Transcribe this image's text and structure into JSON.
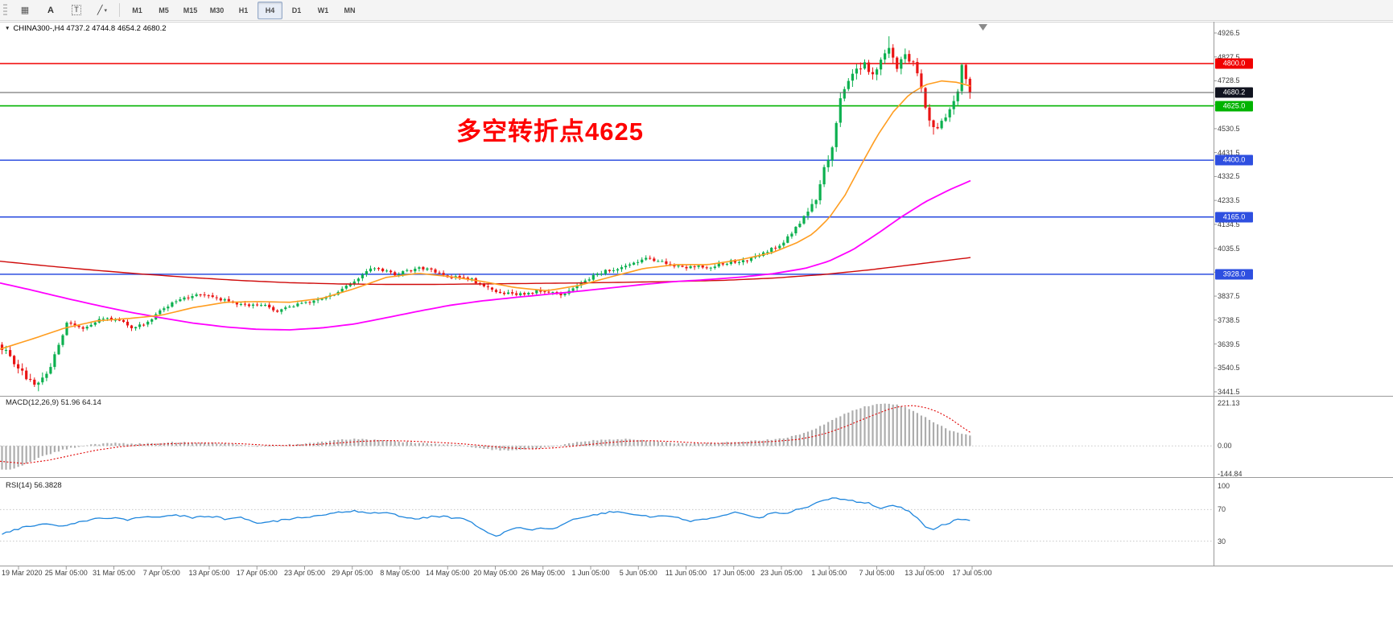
{
  "toolbar": {
    "tool_buttons": [
      {
        "name": "charts-grid-button",
        "glyph": "▦",
        "dropdown": false
      },
      {
        "name": "text-annotation-button",
        "glyph": "A",
        "dropdown": false
      },
      {
        "name": "text-box-tool-button",
        "glyph": "T",
        "dropdown": false
      },
      {
        "name": "line-tools-button",
        "glyph": "╱",
        "dropdown": true
      }
    ],
    "timeframes": [
      "M1",
      "M5",
      "M15",
      "M30",
      "H1",
      "H4",
      "D1",
      "W1",
      "MN"
    ],
    "active_timeframe": "H4"
  },
  "chart": {
    "title": "CHINA300-,H4  4737.2 4744.8 4654.2 4680.2",
    "annotation": "多空转折点4625",
    "annotation_color": "#fe0000",
    "macd_label": "MACD(12,26,9) 51.96 64.14",
    "rsi_label": "RSI(14) 56.3828"
  },
  "axes": {
    "price_labels": [
      "4926.5",
      "4827.5",
      "4728.5",
      "4629.5",
      "4530.5",
      "4431.5",
      "4332.5",
      "4233.5",
      "4134.5",
      "4035.5",
      "3936.5",
      "3837.5",
      "3738.5",
      "3639.5",
      "3540.5",
      "3441.5"
    ],
    "macd_labels": [
      "221.13",
      "0.00",
      "-144.84"
    ],
    "rsi_labels": [
      "100",
      "70",
      "30"
    ],
    "time_labels": [
      "19 Mar 2020",
      "25 Mar 05:00",
      "31 Mar 05:00",
      "7 Apr 05:00",
      "13 Apr 05:00",
      "17 Apr 05:00",
      "23 Apr 05:00",
      "29 Apr 05:00",
      "8 May 05:00",
      "14 May 05:00",
      "20 May 05:00",
      "26 May 05:00",
      "1 Jun 05:00",
      "5 Jun 05:00",
      "11 Jun 05:00",
      "17 Jun 05:00",
      "23 Jun 05:00",
      "1 Jul 05:00",
      "7 Jul 05:00",
      "13 Jul 05:00",
      "17 Jul 05:00"
    ]
  },
  "levels": [
    {
      "price": 4800.0,
      "label": "4800.0",
      "color": "#f00000",
      "type": "resistance"
    },
    {
      "price": 4680.2,
      "label": "4680.2",
      "color": "#10131f",
      "line_color": "#5a5a5a",
      "type": "current-price"
    },
    {
      "price": 4625.0,
      "label": "4625.0",
      "color": "#00b300",
      "type": "pivot"
    },
    {
      "price": 4400.0,
      "label": "4400.0",
      "color": "#2e4fe0",
      "type": "support"
    },
    {
      "price": 4165.0,
      "label": "4165.0",
      "color": "#2e4fe0",
      "type": "support"
    },
    {
      "price": 3928.0,
      "label": "3928.0",
      "color": "#2e4fe0",
      "type": "support"
    }
  ],
  "chart_data": {
    "type": "candlestick",
    "symbol": "CHINA300-",
    "timeframe": "H4",
    "ohlc_current": {
      "open": 4737.2,
      "high": 4744.8,
      "low": 4654.2,
      "close": 4680.2
    },
    "price_range": [
      3441.5,
      4926.5
    ],
    "n_candles": 240,
    "candle_up_color": "#0cb04f",
    "candle_down_color": "#ea1515",
    "close_path_anchors": [
      [
        0,
        3625
      ],
      [
        3,
        3560
      ],
      [
        6,
        3500
      ],
      [
        9,
        3468
      ],
      [
        12,
        3555
      ],
      [
        16,
        3722
      ],
      [
        20,
        3705
      ],
      [
        24,
        3738
      ],
      [
        28,
        3745
      ],
      [
        32,
        3706
      ],
      [
        36,
        3728
      ],
      [
        40,
        3792
      ],
      [
        44,
        3822
      ],
      [
        48,
        3845
      ],
      [
        52,
        3835
      ],
      [
        56,
        3815
      ],
      [
        60,
        3800
      ],
      [
        64,
        3806
      ],
      [
        68,
        3775
      ],
      [
        72,
        3800
      ],
      [
        76,
        3816
      ],
      [
        80,
        3832
      ],
      [
        84,
        3862
      ],
      [
        88,
        3915
      ],
      [
        91,
        3952
      ],
      [
        94,
        3944
      ],
      [
        97,
        3926
      ],
      [
        100,
        3940
      ],
      [
        104,
        3954
      ],
      [
        108,
        3930
      ],
      [
        111,
        3910
      ],
      [
        114,
        3921
      ],
      [
        117,
        3896
      ],
      [
        120,
        3871
      ],
      [
        123,
        3846
      ],
      [
        126,
        3852
      ],
      [
        129,
        3840
      ],
      [
        132,
        3861
      ],
      [
        135,
        3854
      ],
      [
        138,
        3846
      ],
      [
        141,
        3872
      ],
      [
        144,
        3902
      ],
      [
        147,
        3932
      ],
      [
        150,
        3945
      ],
      [
        153,
        3958
      ],
      [
        156,
        3974
      ],
      [
        159,
        3996
      ],
      [
        162,
        3984
      ],
      [
        165,
        3968
      ],
      [
        168,
        3955
      ],
      [
        171,
        3964
      ],
      [
        174,
        3950
      ],
      [
        177,
        3970
      ],
      [
        180,
        3980
      ],
      [
        183,
        3986
      ],
      [
        186,
        4000
      ],
      [
        189,
        4022
      ],
      [
        193,
        4060
      ],
      [
        196,
        4118
      ],
      [
        199,
        4188
      ],
      [
        201,
        4240
      ],
      [
        203,
        4360
      ],
      [
        205,
        4460
      ],
      [
        207,
        4648
      ],
      [
        209,
        4728
      ],
      [
        211,
        4768
      ],
      [
        213,
        4798
      ],
      [
        215,
        4760
      ],
      [
        217,
        4808
      ],
      [
        219,
        4852
      ],
      [
        221,
        4790
      ],
      [
        223,
        4828
      ],
      [
        225,
        4800
      ],
      [
        227,
        4700
      ],
      [
        229,
        4562
      ],
      [
        231,
        4522
      ],
      [
        233,
        4590
      ],
      [
        235,
        4640
      ],
      [
        236,
        4678
      ],
      [
        237,
        4790
      ],
      [
        238,
        4735
      ],
      [
        239,
        4680
      ]
    ],
    "ma_fast_orange": [
      [
        0,
        3618
      ],
      [
        40,
        3660
      ],
      [
        80,
        3705
      ],
      [
        120,
        3735
      ],
      [
        160,
        3745
      ],
      [
        200,
        3758
      ],
      [
        240,
        3790
      ],
      [
        280,
        3812
      ],
      [
        320,
        3815
      ],
      [
        360,
        3812
      ],
      [
        400,
        3828
      ],
      [
        440,
        3868
      ],
      [
        480,
        3915
      ],
      [
        520,
        3932
      ],
      [
        560,
        3918
      ],
      [
        600,
        3898
      ],
      [
        640,
        3873
      ],
      [
        680,
        3860
      ],
      [
        720,
        3882
      ],
      [
        760,
        3918
      ],
      [
        800,
        3952
      ],
      [
        840,
        3968
      ],
      [
        880,
        3968
      ],
      [
        920,
        3988
      ],
      [
        960,
        4018
      ],
      [
        990,
        4058
      ],
      [
        1010,
        4095
      ],
      [
        1030,
        4160
      ],
      [
        1050,
        4255
      ],
      [
        1070,
        4380
      ],
      [
        1090,
        4500
      ],
      [
        1110,
        4600
      ],
      [
        1130,
        4672
      ],
      [
        1150,
        4712
      ],
      [
        1170,
        4728
      ],
      [
        1190,
        4722
      ],
      [
        1208,
        4705
      ]
    ],
    "ma_mid_magenta": [
      [
        0,
        3892
      ],
      [
        40,
        3862
      ],
      [
        80,
        3830
      ],
      [
        120,
        3800
      ],
      [
        160,
        3772
      ],
      [
        200,
        3748
      ],
      [
        240,
        3726
      ],
      [
        280,
        3710
      ],
      [
        320,
        3700
      ],
      [
        360,
        3698
      ],
      [
        400,
        3706
      ],
      [
        440,
        3722
      ],
      [
        480,
        3748
      ],
      [
        520,
        3775
      ],
      [
        560,
        3800
      ],
      [
        600,
        3818
      ],
      [
        640,
        3832
      ],
      [
        680,
        3845
      ],
      [
        720,
        3858
      ],
      [
        760,
        3872
      ],
      [
        800,
        3886
      ],
      [
        840,
        3898
      ],
      [
        880,
        3906
      ],
      [
        920,
        3916
      ],
      [
        960,
        3930
      ],
      [
        1000,
        3952
      ],
      [
        1030,
        3982
      ],
      [
        1060,
        4030
      ],
      [
        1090,
        4095
      ],
      [
        1120,
        4165
      ],
      [
        1150,
        4228
      ],
      [
        1180,
        4278
      ],
      [
        1208,
        4318
      ]
    ],
    "ma_slow_red": [
      [
        0,
        3982
      ],
      [
        60,
        3962
      ],
      [
        120,
        3944
      ],
      [
        180,
        3928
      ],
      [
        240,
        3914
      ],
      [
        300,
        3902
      ],
      [
        360,
        3893
      ],
      [
        420,
        3888
      ],
      [
        480,
        3886
      ],
      [
        540,
        3886
      ],
      [
        600,
        3888
      ],
      [
        660,
        3890
      ],
      [
        720,
        3892
      ],
      [
        780,
        3895
      ],
      [
        840,
        3898
      ],
      [
        900,
        3903
      ],
      [
        960,
        3912
      ],
      [
        1020,
        3926
      ],
      [
        1080,
        3946
      ],
      [
        1140,
        3970
      ],
      [
        1208,
        3998
      ]
    ],
    "macd": {
      "label": "MACD(12,26,9)",
      "current_values": [
        51.96,
        64.14
      ],
      "scale": [
        -144.84,
        221.13
      ],
      "anchors": [
        [
          0,
          -125
        ],
        [
          15,
          -120
        ],
        [
          30,
          -100
        ],
        [
          50,
          -60
        ],
        [
          70,
          -30
        ],
        [
          90,
          -10
        ],
        [
          110,
          5
        ],
        [
          130,
          12
        ],
        [
          150,
          15
        ],
        [
          170,
          10
        ],
        [
          190,
          14
        ],
        [
          210,
          18
        ],
        [
          230,
          20
        ],
        [
          250,
          17
        ],
        [
          270,
          14
        ],
        [
          290,
          8
        ],
        [
          310,
          0
        ],
        [
          330,
          -6
        ],
        [
          350,
          4
        ],
        [
          370,
          10
        ],
        [
          390,
          16
        ],
        [
          410,
          26
        ],
        [
          430,
          34
        ],
        [
          450,
          36
        ],
        [
          470,
          30
        ],
        [
          490,
          24
        ],
        [
          510,
          18
        ],
        [
          530,
          14
        ],
        [
          550,
          10
        ],
        [
          570,
          4
        ],
        [
          590,
          -8
        ],
        [
          610,
          -20
        ],
        [
          630,
          -24
        ],
        [
          650,
          -18
        ],
        [
          670,
          -10
        ],
        [
          690,
          0
        ],
        [
          710,
          16
        ],
        [
          730,
          26
        ],
        [
          750,
          33
        ],
        [
          770,
          36
        ],
        [
          790,
          32
        ],
        [
          810,
          26
        ],
        [
          830,
          17
        ],
        [
          850,
          12
        ],
        [
          870,
          11
        ],
        [
          890,
          15
        ],
        [
          910,
          20
        ],
        [
          930,
          24
        ],
        [
          950,
          30
        ],
        [
          970,
          38
        ],
        [
          990,
          55
        ],
        [
          1010,
          85
        ],
        [
          1030,
          125
        ],
        [
          1050,
          168
        ],
        [
          1070,
          200
        ],
        [
          1090,
          216
        ],
        [
          1105,
          221
        ],
        [
          1120,
          208
        ],
        [
          1135,
          182
        ],
        [
          1150,
          148
        ],
        [
          1165,
          112
        ],
        [
          1180,
          82
        ],
        [
          1195,
          62
        ],
        [
          1208,
          52
        ]
      ],
      "signal_anchors": [
        [
          0,
          -80
        ],
        [
          30,
          -92
        ],
        [
          60,
          -75
        ],
        [
          90,
          -48
        ],
        [
          120,
          -22
        ],
        [
          150,
          -4
        ],
        [
          180,
          6
        ],
        [
          210,
          11
        ],
        [
          240,
          15
        ],
        [
          270,
          15
        ],
        [
          300,
          11
        ],
        [
          330,
          4
        ],
        [
          360,
          2
        ],
        [
          390,
          7
        ],
        [
          420,
          15
        ],
        [
          450,
          24
        ],
        [
          480,
          28
        ],
        [
          510,
          25
        ],
        [
          540,
          19
        ],
        [
          570,
          12
        ],
        [
          600,
          2
        ],
        [
          630,
          -10
        ],
        [
          660,
          -16
        ],
        [
          690,
          -10
        ],
        [
          720,
          2
        ],
        [
          750,
          15
        ],
        [
          780,
          25
        ],
        [
          810,
          27
        ],
        [
          840,
          22
        ],
        [
          870,
          15
        ],
        [
          900,
          13
        ],
        [
          930,
          17
        ],
        [
          960,
          23
        ],
        [
          990,
          33
        ],
        [
          1010,
          48
        ],
        [
          1030,
          70
        ],
        [
          1050,
          100
        ],
        [
          1070,
          135
        ],
        [
          1090,
          168
        ],
        [
          1105,
          192
        ],
        [
          1120,
          207
        ],
        [
          1135,
          210
        ],
        [
          1150,
          200
        ],
        [
          1165,
          178
        ],
        [
          1180,
          145
        ],
        [
          1195,
          100
        ],
        [
          1208,
          64
        ]
      ]
    },
    "rsi": {
      "label": "RSI(14)",
      "current_value": 56.3828,
      "levels": [
        30,
        70
      ],
      "scale": [
        0,
        100
      ],
      "anchors": [
        [
          0,
          38
        ],
        [
          20,
          45
        ],
        [
          40,
          50
        ],
        [
          60,
          52
        ],
        [
          80,
          48
        ],
        [
          100,
          55
        ],
        [
          120,
          58
        ],
        [
          140,
          60
        ],
        [
          160,
          57
        ],
        [
          180,
          62
        ],
        [
          200,
          60
        ],
        [
          220,
          63
        ],
        [
          240,
          60
        ],
        [
          260,
          62
        ],
        [
          280,
          58
        ],
        [
          300,
          60
        ],
        [
          320,
          52
        ],
        [
          340,
          55
        ],
        [
          360,
          58
        ],
        [
          380,
          60
        ],
        [
          400,
          62
        ],
        [
          420,
          66
        ],
        [
          440,
          68
        ],
        [
          460,
          65
        ],
        [
          480,
          67
        ],
        [
          500,
          60
        ],
        [
          520,
          58
        ],
        [
          540,
          62
        ],
        [
          560,
          60
        ],
        [
          580,
          57
        ],
        [
          600,
          45
        ],
        [
          615,
          36
        ],
        [
          630,
          42
        ],
        [
          645,
          48
        ],
        [
          660,
          44
        ],
        [
          675,
          47
        ],
        [
          690,
          45
        ],
        [
          705,
          55
        ],
        [
          720,
          60
        ],
        [
          735,
          62
        ],
        [
          750,
          65
        ],
        [
          765,
          68
        ],
        [
          780,
          66
        ],
        [
          795,
          63
        ],
        [
          810,
          60
        ],
        [
          825,
          63
        ],
        [
          840,
          60
        ],
        [
          855,
          55
        ],
        [
          870,
          57
        ],
        [
          885,
          60
        ],
        [
          900,
          64
        ],
        [
          915,
          66
        ],
        [
          930,
          62
        ],
        [
          945,
          60
        ],
        [
          960,
          66
        ],
        [
          975,
          64
        ],
        [
          990,
          70
        ],
        [
          1005,
          74
        ],
        [
          1020,
          80
        ],
        [
          1035,
          86
        ],
        [
          1050,
          83
        ],
        [
          1065,
          80
        ],
        [
          1080,
          78
        ],
        [
          1095,
          72
        ],
        [
          1110,
          76
        ],
        [
          1125,
          70
        ],
        [
          1140,
          60
        ],
        [
          1150,
          48
        ],
        [
          1160,
          45
        ],
        [
          1175,
          52
        ],
        [
          1190,
          57
        ],
        [
          1205,
          56.4
        ]
      ]
    }
  }
}
